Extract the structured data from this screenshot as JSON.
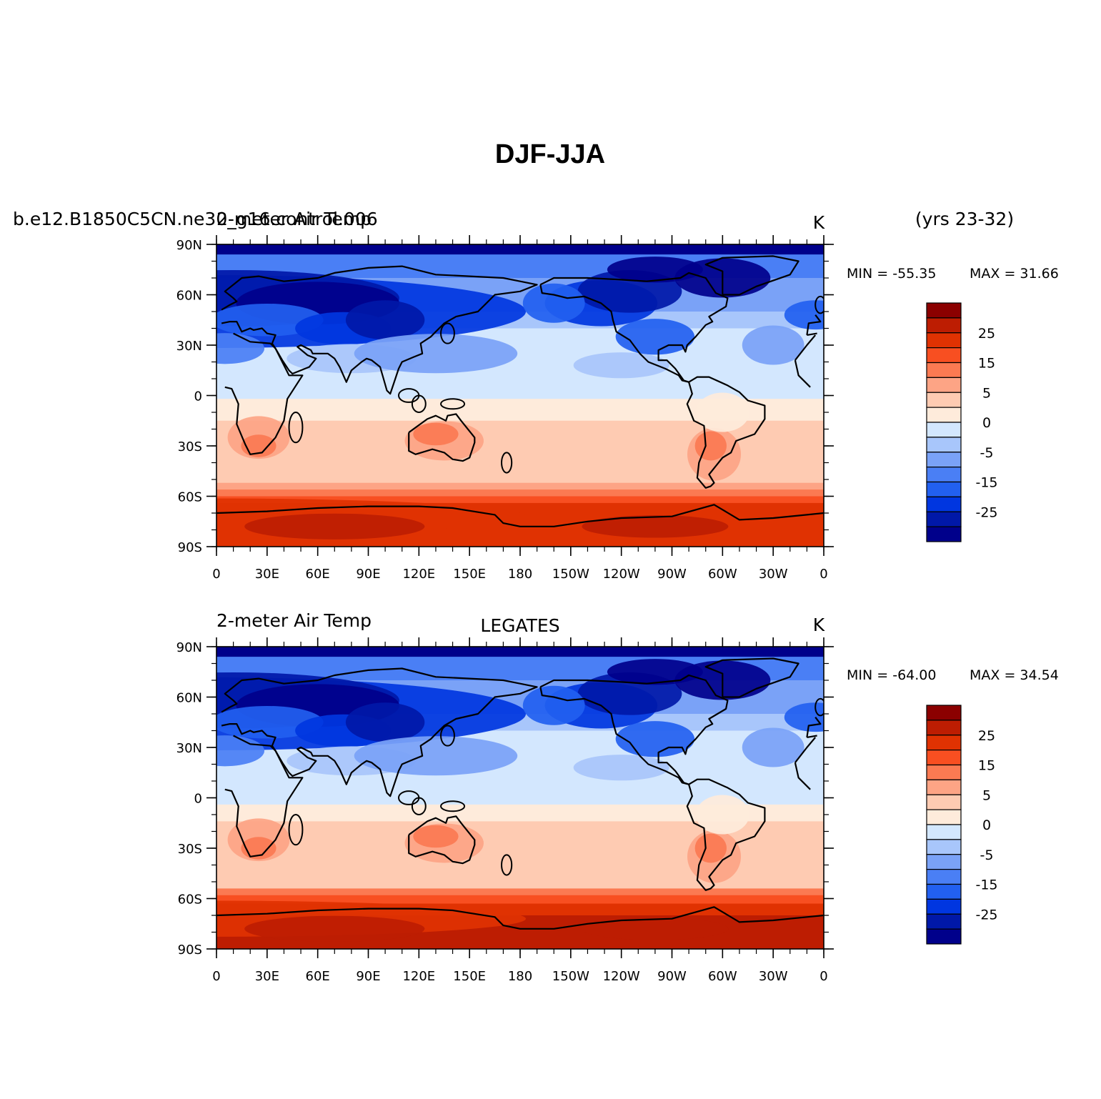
{
  "title": "DJF-JJA",
  "colors": {
    "levels": [
      "#00008b",
      "#0018a8",
      "#0036e0",
      "#2260f0",
      "#4a7ff5",
      "#7aa2f7",
      "#a8c6fb",
      "#d3e7fe",
      "#feebdb",
      "#fecbb2",
      "#fda485",
      "#fb7a52",
      "#f84f21",
      "#e03202",
      "#bd1d02",
      "#8b0000"
    ],
    "coast": "#000000"
  },
  "panels": [
    {
      "left_title": "b.e12.B1850C5CN.ne30_g16.control.006",
      "left_title_overlay": "2-meter Air Temp",
      "center_title": "",
      "units": "K",
      "right_top": "(yrs 23-32)",
      "min_label": "MIN = -55.35",
      "max_label": "MAX =  31.66"
    },
    {
      "left_title": "2-meter Air Temp",
      "left_title_overlay": "",
      "center_title": "LEGATES",
      "units": "K",
      "right_top": "",
      "min_label": "MIN = -64.00",
      "max_label": "MAX =  34.54"
    }
  ],
  "lat_ticks": [
    "90N",
    "60N",
    "30N",
    "0",
    "30S",
    "60S",
    "90S"
  ],
  "lon_ticks": [
    "0",
    "30E",
    "60E",
    "90E",
    "120E",
    "150E",
    "180",
    "150W",
    "120W",
    "90W",
    "60W",
    "30W",
    "0"
  ],
  "colorbar_labels": [
    "25",
    "15",
    "5",
    "0",
    "-5",
    "-15",
    "-25"
  ],
  "chart_data": [
    {
      "type": "heatmap",
      "subject": "2-meter Air Temp, DJF minus JJA (model)",
      "units": "K",
      "min": -55.35,
      "max": 31.66,
      "contour_levels": [
        -30,
        -25,
        -20,
        -15,
        -10,
        -5,
        -2,
        0,
        2,
        5,
        10,
        15,
        20,
        25,
        30
      ],
      "x_range": [
        0,
        360
      ],
      "y_range": [
        -90,
        90
      ]
    },
    {
      "type": "heatmap",
      "subject": "2-meter Air Temp, LEGATES",
      "units": "K",
      "min": -64.0,
      "max": 34.54,
      "contour_levels": [
        -30,
        -25,
        -20,
        -15,
        -10,
        -5,
        -2,
        0,
        2,
        5,
        10,
        15,
        20,
        25,
        30
      ],
      "x_range": [
        0,
        360
      ],
      "y_range": [
        -90,
        90
      ]
    }
  ]
}
